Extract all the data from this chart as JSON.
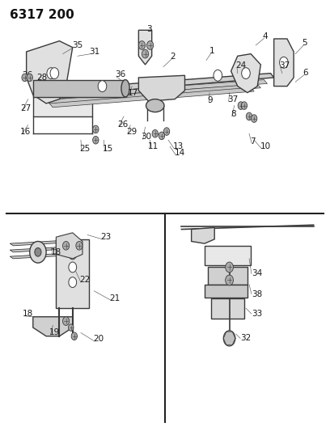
{
  "title": "6317 200",
  "bg_color": "#ffffff",
  "line_color": "#3a3a3a",
  "title_fontsize": 11,
  "label_fontsize": 7.5,
  "fig_width": 4.08,
  "fig_height": 5.33,
  "dpi": 100
}
